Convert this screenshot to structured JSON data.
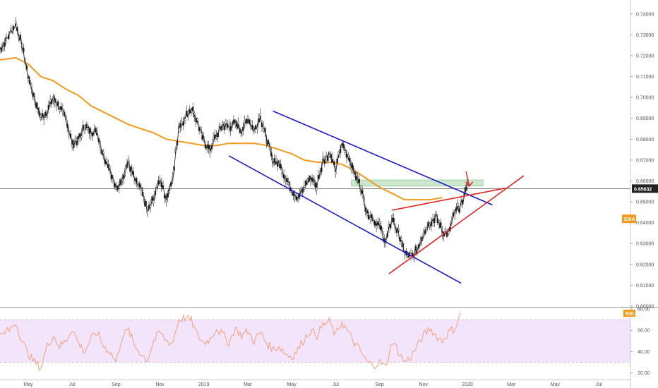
{
  "chart_data": [
    {
      "type": "candlestick",
      "title": "",
      "ylim": [
        0.6,
        0.745
      ],
      "y_ticks": [
        "0.74000",
        "0.73000",
        "0.72000",
        "0.71000",
        "0.70000",
        "0.69000",
        "0.68000",
        "0.67000",
        "0.66000",
        "0.65000",
        "0.64000",
        "0.63000",
        "0.62000",
        "0.61000",
        "0.60000"
      ],
      "y_tick_values": [
        0.74,
        0.73,
        0.72,
        0.71,
        0.7,
        0.69,
        0.68,
        0.67,
        0.66,
        0.65,
        0.64,
        0.63,
        0.62,
        0.61,
        0.6
      ],
      "x_ticks": [
        "May",
        "Jul",
        "Sep",
        "Nov",
        "2019",
        "Mar",
        "May",
        "Jul",
        "Sep",
        "Nov",
        "2020",
        "Mar",
        "May",
        "Jul"
      ],
      "x_tick_values": [
        2,
        9,
        16,
        23,
        30,
        37,
        44,
        51,
        58,
        65,
        72,
        79,
        86,
        93
      ],
      "xlim": [
        -2.5,
        98
      ],
      "last_price": "0.65632",
      "last_price_value": 0.65632,
      "ema_label": "EMA",
      "price_path": [
        [
          -2.5,
          0.723
        ],
        [
          -1.5,
          0.728
        ],
        [
          0,
          0.735
        ],
        [
          1,
          0.725
        ],
        [
          2,
          0.71
        ],
        [
          3,
          0.7
        ],
        [
          4,
          0.69
        ],
        [
          5,
          0.693
        ],
        [
          6,
          0.7
        ],
        [
          7,
          0.695
        ],
        [
          8,
          0.69
        ],
        [
          9,
          0.678
        ],
        [
          10,
          0.68
        ],
        [
          11,
          0.686
        ],
        [
          12,
          0.684
        ],
        [
          13,
          0.683
        ],
        [
          14,
          0.672
        ],
        [
          15,
          0.666
        ],
        [
          16,
          0.656
        ],
        [
          17,
          0.662
        ],
        [
          18,
          0.669
        ],
        [
          19,
          0.66
        ],
        [
          20,
          0.656
        ],
        [
          21,
          0.645
        ],
        [
          22,
          0.652
        ],
        [
          23,
          0.661
        ],
        [
          24,
          0.652
        ],
        [
          25,
          0.66
        ],
        [
          26,
          0.686
        ],
        [
          27,
          0.69
        ],
        [
          28,
          0.695
        ],
        [
          29,
          0.688
        ],
        [
          30,
          0.679
        ],
        [
          31,
          0.675
        ],
        [
          32,
          0.682
        ],
        [
          33,
          0.687
        ],
        [
          34,
          0.686
        ],
        [
          35,
          0.688
        ],
        [
          36,
          0.684
        ],
        [
          37,
          0.69
        ],
        [
          38,
          0.684
        ],
        [
          39,
          0.691
        ],
        [
          40,
          0.68
        ],
        [
          41,
          0.67
        ],
        [
          42,
          0.668
        ],
        [
          43,
          0.662
        ],
        [
          44,
          0.656
        ],
        [
          45,
          0.652
        ],
        [
          46,
          0.657
        ],
        [
          47,
          0.662
        ],
        [
          48,
          0.658
        ],
        [
          49,
          0.67
        ],
        [
          50,
          0.673
        ],
        [
          51,
          0.665
        ],
        [
          52,
          0.678
        ],
        [
          53,
          0.672
        ],
        [
          54,
          0.664
        ],
        [
          55,
          0.657
        ],
        [
          56,
          0.645
        ],
        [
          57,
          0.642
        ],
        [
          58,
          0.638
        ],
        [
          59,
          0.631
        ],
        [
          60,
          0.642
        ],
        [
          61,
          0.635
        ],
        [
          62,
          0.626
        ],
        [
          63,
          0.623
        ],
        [
          64,
          0.627
        ],
        [
          65,
          0.635
        ],
        [
          66,
          0.64
        ],
        [
          67,
          0.643
        ],
        [
          68,
          0.636
        ],
        [
          69,
          0.635
        ],
        [
          70,
          0.645
        ],
        [
          71,
          0.648
        ],
        [
          72,
          0.658
        ]
      ],
      "ema_path": [
        [
          -2.5,
          0.718
        ],
        [
          0,
          0.719
        ],
        [
          2,
          0.716
        ],
        [
          4,
          0.71
        ],
        [
          6,
          0.708
        ],
        [
          8,
          0.704
        ],
        [
          10,
          0.701
        ],
        [
          12,
          0.696
        ],
        [
          14,
          0.693
        ],
        [
          16,
          0.69
        ],
        [
          18,
          0.687
        ],
        [
          20,
          0.685
        ],
        [
          22,
          0.683
        ],
        [
          24,
          0.68
        ],
        [
          26,
          0.679
        ],
        [
          28,
          0.678
        ],
        [
          30,
          0.677
        ],
        [
          32,
          0.677
        ],
        [
          34,
          0.678
        ],
        [
          36,
          0.678
        ],
        [
          38,
          0.678
        ],
        [
          40,
          0.677
        ],
        [
          42,
          0.675
        ],
        [
          44,
          0.673
        ],
        [
          46,
          0.67
        ],
        [
          48,
          0.669
        ],
        [
          50,
          0.669
        ],
        [
          52,
          0.668
        ],
        [
          54,
          0.665
        ],
        [
          56,
          0.661
        ],
        [
          58,
          0.657
        ],
        [
          60,
          0.654
        ],
        [
          62,
          0.651
        ],
        [
          64,
          0.651
        ],
        [
          66,
          0.651
        ],
        [
          68,
          0.652
        ]
      ],
      "trendlines": [
        {
          "color": "#1a1acc",
          "points": [
            [
              41,
              0.6935
            ],
            [
              76,
              0.6485
            ]
          ]
        },
        {
          "color": "#1a1acc",
          "points": [
            [
              34,
              0.672
            ],
            [
              71,
              0.611
            ]
          ]
        },
        {
          "color": "#e32222",
          "points": [
            [
              60,
              0.646
            ],
            [
              78,
              0.6565
            ]
          ]
        },
        {
          "color": "#e32222",
          "points": [
            [
              59.5,
              0.6155
            ],
            [
              81,
              0.6625
            ]
          ]
        }
      ],
      "zone": {
        "x": [
          53.5,
          74.5
        ],
        "y": [
          0.6575,
          0.6605
        ],
        "color": "#9fd3a6"
      },
      "arrow": {
        "color": "#e32222",
        "from": [
          71.8,
          0.6645
        ],
        "to": [
          72.3,
          0.6575
        ]
      }
    },
    {
      "type": "line",
      "name": "RSI",
      "ylim": [
        17,
        80
      ],
      "y_ticks": [
        "80.00",
        "60.00",
        "40.00",
        "20.00"
      ],
      "y_tick_values": [
        80,
        60,
        40,
        20
      ],
      "band": [
        30,
        70
      ],
      "band_color": "#f2e4fb",
      "line_color": "#f4a07a",
      "label": "RSI",
      "values": [
        [
          -2.5,
          55
        ],
        [
          -1,
          60
        ],
        [
          0,
          68
        ],
        [
          1,
          50
        ],
        [
          2,
          38
        ],
        [
          3,
          30
        ],
        [
          4,
          25
        ],
        [
          5,
          45
        ],
        [
          6,
          55
        ],
        [
          7,
          45
        ],
        [
          8,
          50
        ],
        [
          9,
          62
        ],
        [
          10,
          48
        ],
        [
          11,
          40
        ],
        [
          12,
          52
        ],
        [
          13,
          58
        ],
        [
          14,
          45
        ],
        [
          15,
          40
        ],
        [
          16,
          30
        ],
        [
          17,
          55
        ],
        [
          18,
          60
        ],
        [
          19,
          45
        ],
        [
          20,
          38
        ],
        [
          21,
          32
        ],
        [
          22,
          50
        ],
        [
          23,
          58
        ],
        [
          24,
          50
        ],
        [
          25,
          48
        ],
        [
          26,
          70
        ],
        [
          27,
          72
        ],
        [
          28,
          69
        ],
        [
          29,
          55
        ],
        [
          30,
          48
        ],
        [
          31,
          52
        ],
        [
          32,
          62
        ],
        [
          33,
          56
        ],
        [
          34,
          48
        ],
        [
          35,
          62
        ],
        [
          36,
          55
        ],
        [
          37,
          59
        ],
        [
          38,
          50
        ],
        [
          39,
          58
        ],
        [
          40,
          48
        ],
        [
          41,
          42
        ],
        [
          42,
          45
        ],
        [
          43,
          38
        ],
        [
          44,
          35
        ],
        [
          45,
          42
        ],
        [
          46,
          52
        ],
        [
          47,
          60
        ],
        [
          48,
          55
        ],
        [
          49,
          65
        ],
        [
          50,
          68
        ],
        [
          51,
          55
        ],
        [
          52,
          68
        ],
        [
          53,
          58
        ],
        [
          54,
          48
        ],
        [
          55,
          40
        ],
        [
          56,
          30
        ],
        [
          57,
          27
        ],
        [
          58,
          30
        ],
        [
          59,
          25
        ],
        [
          60,
          50
        ],
        [
          61,
          40
        ],
        [
          62,
          30
        ],
        [
          63,
          35
        ],
        [
          64,
          45
        ],
        [
          65,
          55
        ],
        [
          66,
          62
        ],
        [
          67,
          55
        ],
        [
          68,
          50
        ],
        [
          69,
          58
        ],
        [
          70,
          62
        ],
        [
          71,
          76
        ]
      ]
    }
  ]
}
